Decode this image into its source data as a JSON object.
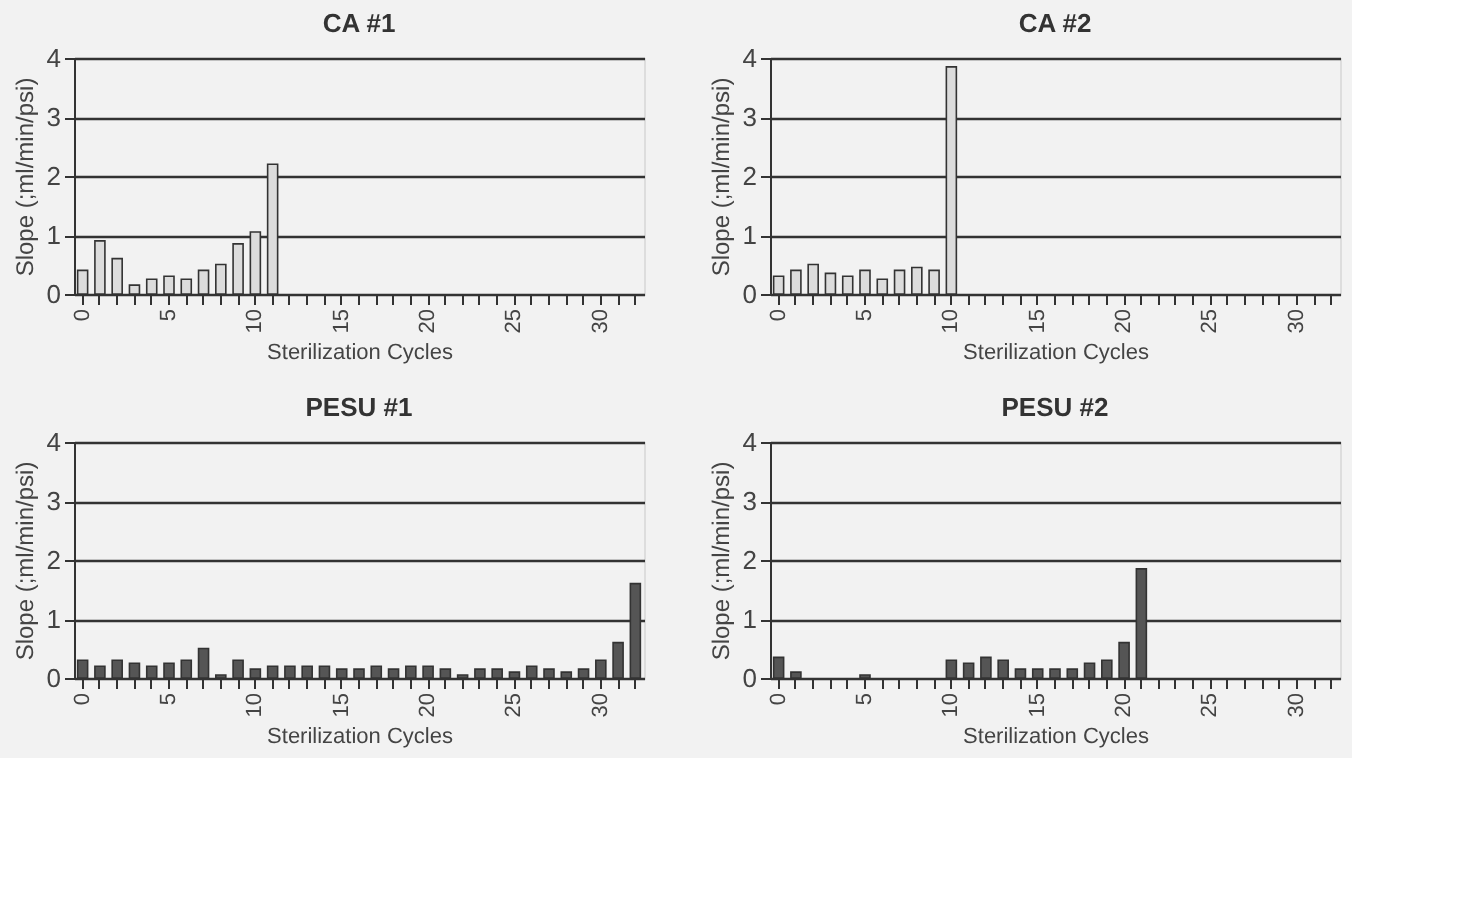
{
  "chart_data": [
    {
      "type": "bar",
      "title": "CA #1",
      "xlabel": "Sterilization  Cycles",
      "ylabel": "Slope (;ml/min/psi)",
      "categories": [
        "0",
        null,
        null,
        null,
        null,
        "5",
        null,
        null,
        null,
        null,
        "10",
        null,
        null,
        null,
        null,
        "15",
        null,
        null,
        null,
        null,
        "20",
        null,
        null,
        null,
        null,
        "25",
        null,
        null,
        null,
        null,
        "30",
        null,
        null
      ],
      "series": [
        {
          "color": "#dcdcdc",
          "values": [
            0.4,
            0.9,
            0.6,
            0.15,
            0.25,
            0.3,
            0.25,
            0.4,
            0.5,
            0.85,
            1.05,
            2.2,
            null,
            null,
            null,
            null,
            null,
            null,
            null,
            null,
            null,
            null,
            null,
            null,
            null,
            null,
            null,
            null,
            null,
            null,
            null,
            null,
            null
          ]
        }
      ],
      "ylim": [
        0,
        4
      ],
      "yticks": [
        0,
        1,
        2,
        3,
        4
      ],
      "grid": "y"
    },
    {
      "type": "bar",
      "title": "CA #2",
      "xlabel": "Sterilization  Cycles",
      "ylabel": "Slope (;ml/min/psi)",
      "categories": [
        "0",
        null,
        null,
        null,
        null,
        "5",
        null,
        null,
        null,
        null,
        "10",
        null,
        null,
        null,
        null,
        "15",
        null,
        null,
        null,
        null,
        "20",
        null,
        null,
        null,
        null,
        "25",
        null,
        null,
        null,
        null,
        "30",
        null,
        null
      ],
      "series": [
        {
          "color": "#dcdcdc",
          "values": [
            0.3,
            0.4,
            0.5,
            0.35,
            0.3,
            0.4,
            0.25,
            0.4,
            0.45,
            0.4,
            3.85,
            null,
            null,
            null,
            null,
            null,
            null,
            null,
            null,
            null,
            null,
            null,
            null,
            null,
            null,
            null,
            null,
            null,
            null,
            null,
            null,
            null,
            null
          ]
        }
      ],
      "ylim": [
        0,
        4
      ],
      "yticks": [
        0,
        1,
        2,
        3,
        4
      ],
      "grid": "y"
    },
    {
      "type": "bar",
      "title": "PESU #1",
      "xlabel": "Sterilization  Cycles",
      "ylabel": "Slope (;ml/min/psi)",
      "categories": [
        "0",
        null,
        null,
        null,
        null,
        "5",
        null,
        null,
        null,
        null,
        "10",
        null,
        null,
        null,
        null,
        "15",
        null,
        null,
        null,
        null,
        "20",
        null,
        null,
        null,
        null,
        "25",
        null,
        null,
        null,
        null,
        "30",
        null,
        null
      ],
      "series": [
        {
          "color": "#555555",
          "values": [
            0.3,
            0.2,
            0.3,
            0.25,
            0.2,
            0.25,
            0.3,
            0.5,
            0.05,
            0.3,
            0.15,
            0.2,
            0.2,
            0.2,
            0.2,
            0.15,
            0.15,
            0.2,
            0.15,
            0.2,
            0.2,
            0.15,
            0.05,
            0.15,
            0.15,
            0.1,
            0.2,
            0.15,
            0.1,
            0.15,
            0.3,
            0.6,
            1.6
          ]
        }
      ],
      "ylim": [
        0,
        4
      ],
      "yticks": [
        0,
        1,
        2,
        3,
        4
      ],
      "grid": "y"
    },
    {
      "type": "bar",
      "title": "PESU #2",
      "xlabel": "Sterilization  Cycles",
      "ylabel": "Slope (;ml/min/psi)",
      "categories": [
        "0",
        null,
        null,
        null,
        null,
        "5",
        null,
        null,
        null,
        null,
        "10",
        null,
        null,
        null,
        null,
        "15",
        null,
        null,
        null,
        null,
        "20",
        null,
        null,
        null,
        null,
        "25",
        null,
        null,
        null,
        null,
        "30",
        null,
        null
      ],
      "series": [
        {
          "color": "#555555",
          "values": [
            0.35,
            0.1,
            null,
            null,
            null,
            0.05,
            null,
            null,
            null,
            null,
            0.3,
            0.25,
            0.35,
            0.3,
            0.15,
            0.15,
            0.15,
            0.15,
            0.25,
            0.3,
            0.6,
            1.85,
            null,
            null,
            null,
            null,
            null,
            null,
            null,
            null,
            null,
            null,
            null
          ]
        }
      ],
      "ylim": [
        0,
        4
      ],
      "yticks": [
        0,
        1,
        2,
        3,
        4
      ],
      "grid": "y"
    }
  ]
}
